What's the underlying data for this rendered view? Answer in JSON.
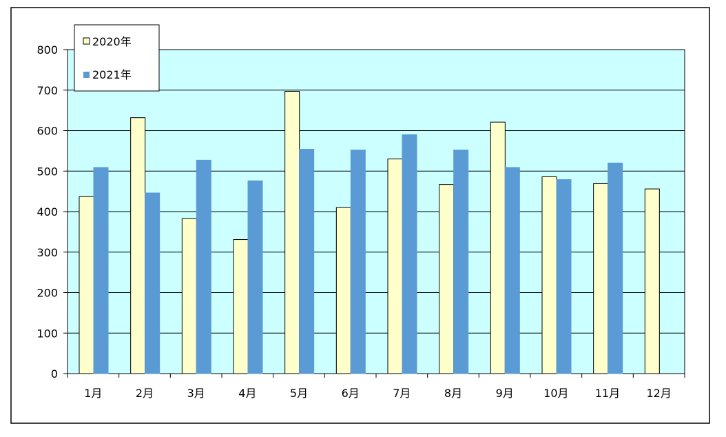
{
  "chart_data": {
    "type": "bar",
    "categories": [
      "1月",
      "2月",
      "3月",
      "4月",
      "5月",
      "6月",
      "7月",
      "8月",
      "9月",
      "10月",
      "11月",
      "12月"
    ],
    "series": [
      {
        "name": "2020年",
        "color": "#ffffcc",
        "stroke": "#000000",
        "values": [
          437,
          632,
          383,
          331,
          697,
          410,
          530,
          467,
          621,
          486,
          469,
          456
        ]
      },
      {
        "name": "2021年",
        "color": "#5b9bd5",
        "stroke": "#5b9bd5",
        "values": [
          509,
          446,
          527,
          476,
          554,
          552,
          590,
          552,
          509,
          479,
          520,
          null
        ]
      }
    ],
    "y_ticks": [
      "0",
      "100",
      "200",
      "300",
      "400",
      "500",
      "600",
      "700",
      "800"
    ],
    "ylim": [
      0,
      800
    ],
    "grid": true,
    "plot_background": "#ccffff",
    "legend_position": "top-left",
    "title": "",
    "xlabel": "",
    "ylabel": ""
  }
}
